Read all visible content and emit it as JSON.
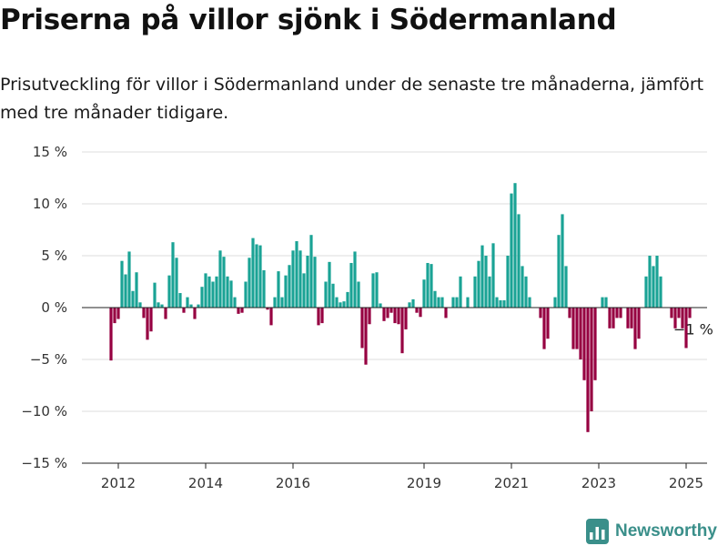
{
  "header": {
    "title": "Priserna på villor sjönk i Södermanland",
    "subtitle": "Prisutveckling för villor i Södermanland under de senaste tre månaderna, jämfört med tre månader tidigare."
  },
  "brand": {
    "name": "Newsworthy",
    "icon": "bar-chart-logo-icon"
  },
  "colors": {
    "positive": "#1aa395",
    "negative": "#960041",
    "grid": "#dedede",
    "axis": "#222222",
    "brand": "#3a8f8a"
  },
  "chart_data": {
    "type": "bar",
    "title": "Priserna på villor sjönk i Södermanland",
    "x_start": "2011-11",
    "frequency": "monthly",
    "yticks": [
      15,
      10,
      5,
      0,
      -5,
      -10,
      -15
    ],
    "ytick_labels": [
      "15 %",
      "10 %",
      "5 %",
      "0 %",
      "−5 %",
      "−10 %",
      "−15 %"
    ],
    "ylim": [
      -15,
      15
    ],
    "xticks": [
      {
        "label": "2012",
        "date": "2012-01"
      },
      {
        "label": "2014",
        "date": "2014-01"
      },
      {
        "label": "2016",
        "date": "2016-01"
      },
      {
        "label": "2019",
        "date": "2019-01"
      },
      {
        "label": "2021",
        "date": "2021-01"
      },
      {
        "label": "2023",
        "date": "2023-01"
      },
      {
        "label": "2025",
        "date": "2025-01"
      }
    ],
    "values": [
      -5.1,
      -1.5,
      -1.1,
      4.5,
      3.2,
      5.4,
      1.6,
      3.4,
      0.5,
      -1.0,
      -3.1,
      -2.3,
      2.4,
      0.5,
      0.3,
      -1.1,
      3.1,
      6.3,
      4.8,
      1.4,
      -0.5,
      1.0,
      0.3,
      -1.1,
      0.3,
      2.0,
      3.3,
      3.0,
      2.5,
      3.0,
      5.5,
      4.9,
      3.0,
      2.6,
      1.0,
      -0.6,
      -0.5,
      2.5,
      4.8,
      6.7,
      6.1,
      6.0,
      3.6,
      -0.2,
      -1.7,
      1.0,
      3.5,
      1.0,
      3.1,
      4.1,
      5.5,
      6.4,
      5.5,
      3.3,
      5.0,
      7.0,
      4.9,
      -1.7,
      -1.5,
      2.5,
      4.4,
      2.3,
      1.0,
      0.5,
      0.6,
      1.5,
      4.3,
      5.4,
      2.5,
      -3.9,
      -5.5,
      -1.6,
      3.3,
      3.4,
      0.4,
      -1.3,
      -1.0,
      -0.5,
      -1.5,
      -1.6,
      -4.4,
      -2.1,
      0.5,
      0.8,
      -0.5,
      -0.9,
      2.7,
      4.3,
      4.2,
      1.6,
      1.0,
      1.0,
      -1.0,
      0.0,
      1.0,
      1.0,
      3.0,
      0.0,
      1.0,
      0.0,
      3.0,
      4.5,
      6.0,
      5.0,
      3.0,
      6.2,
      1.0,
      0.7,
      0.7,
      5.0,
      11.0,
      12.0,
      9.0,
      4.0,
      3.0,
      1.0,
      0.0,
      0.0,
      -1.0,
      -4.0,
      -3.0,
      0.0,
      1.0,
      7.0,
      9.0,
      4.0,
      -1.0,
      -4.0,
      -4.0,
      -5.0,
      -7.0,
      -12.0,
      -10.0,
      -7.0,
      0.0,
      1.0,
      1.0,
      -2.0,
      -2.0,
      -1.0,
      -1.0,
      0.0,
      -2.0,
      -2.0,
      -4.0,
      -3.0,
      0.0,
      3.0,
      5.0,
      4.0,
      5.0,
      3.0,
      0.0,
      0.0,
      -1.0,
      -2.0,
      -1.0,
      -2.0,
      -3.9,
      -1.0
    ],
    "end_label": "−1 %"
  }
}
